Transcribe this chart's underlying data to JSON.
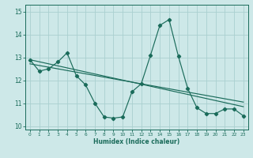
{
  "xlabel": "Humidex (Indice chaleur)",
  "bg_color": "#cde8e8",
  "grid_color": "#aad0d0",
  "line_color": "#1a6b5a",
  "xlim": [
    -0.5,
    23.5
  ],
  "ylim": [
    9.85,
    15.3
  ],
  "xticks": [
    0,
    1,
    2,
    3,
    4,
    5,
    6,
    7,
    8,
    9,
    10,
    11,
    12,
    13,
    14,
    15,
    16,
    17,
    18,
    19,
    20,
    21,
    22,
    23
  ],
  "yticks": [
    10,
    11,
    12,
    13,
    14,
    15
  ],
  "series1_x": [
    0,
    1,
    2,
    3,
    4,
    5,
    6,
    7,
    8,
    9,
    10,
    11,
    12,
    13,
    14,
    15,
    16,
    17,
    18,
    19,
    20,
    21,
    22,
    23
  ],
  "series1_y": [
    12.9,
    12.4,
    12.5,
    12.8,
    13.2,
    12.2,
    11.8,
    11.0,
    10.4,
    10.35,
    10.4,
    11.5,
    11.85,
    13.1,
    14.4,
    14.65,
    13.05,
    11.65,
    10.8,
    10.55,
    10.55,
    10.75,
    10.75,
    10.45
  ],
  "trend1_x": [
    0,
    23
  ],
  "trend1_y": [
    12.9,
    10.85
  ],
  "trend2_x": [
    0,
    23
  ],
  "trend2_y": [
    12.72,
    11.05
  ]
}
